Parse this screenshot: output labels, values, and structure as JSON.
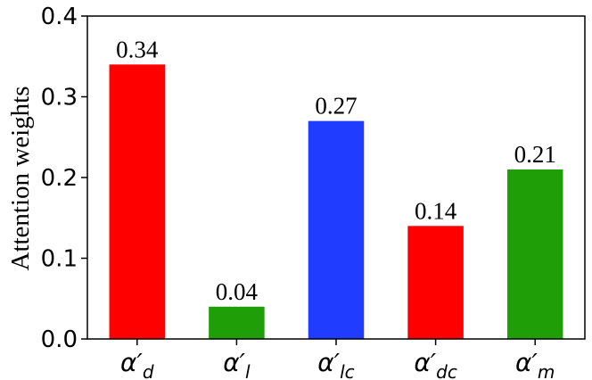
{
  "chart_data": {
    "type": "bar",
    "ylabel": "Attention weights",
    "categories": [
      {
        "symbol": "α′",
        "subscript": "d"
      },
      {
        "symbol": "α′",
        "subscript": "l"
      },
      {
        "symbol": "α′",
        "subscript": "lc"
      },
      {
        "symbol": "α′",
        "subscript": "dc"
      },
      {
        "symbol": "α′",
        "subscript": "m"
      }
    ],
    "values": [
      0.34,
      0.04,
      0.27,
      0.14,
      0.21
    ],
    "colors": [
      "#ff0000",
      "#1f9e08",
      "#1f3cff",
      "#ff0000",
      "#1f9e08"
    ],
    "ylim": [
      0,
      0.4
    ],
    "yticks": [
      {
        "value": 0,
        "label": "0.0"
      },
      0.1,
      0.2,
      0.3,
      0.4
    ]
  }
}
